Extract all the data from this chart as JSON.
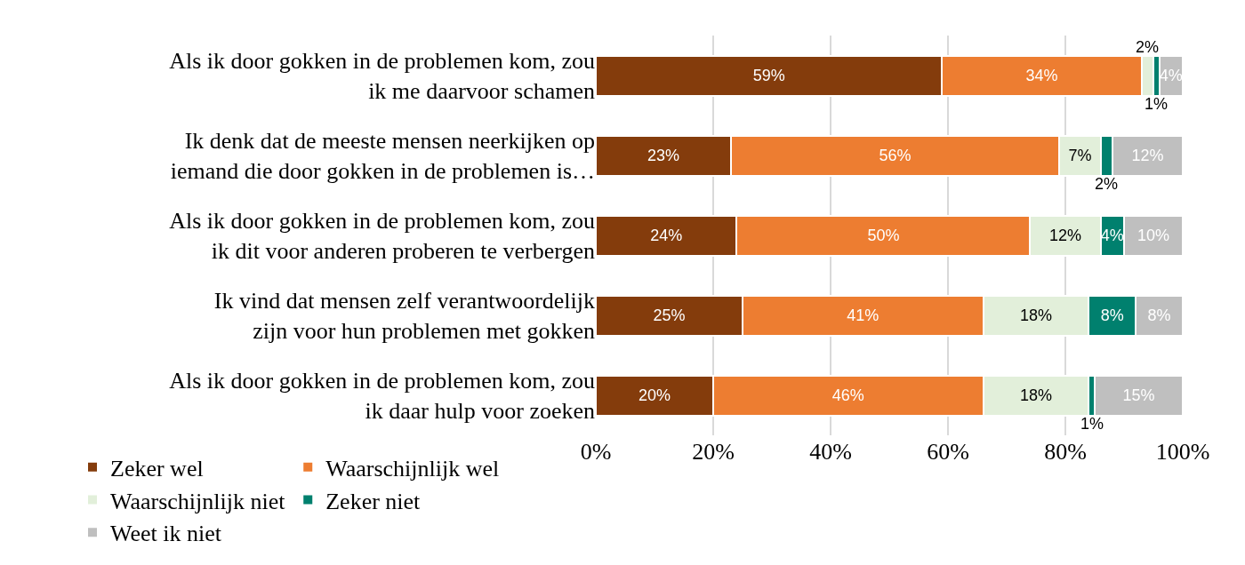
{
  "chart_data": {
    "type": "bar",
    "orientation": "horizontal",
    "stacked": true,
    "categories": [
      "Als ik door gokken in de problemen kom, zou ik me daarvoor schamen",
      "Ik denk dat de meeste mensen neerkijken op iemand die door gokken in de problemen is…",
      "Als ik door gokken in de problemen kom, zou ik dit voor anderen proberen te verbergen",
      "Ik vind dat mensen zelf verantwoordelijk zijn voor hun problemen met gokken",
      "Als ik door gokken in de problemen kom, zou ik daar hulp voor zoeken"
    ],
    "series": [
      {
        "name": "Zeker wel",
        "color": "#843c0c",
        "values": [
          59,
          23,
          24,
          25,
          20
        ],
        "value_labels": [
          "59%",
          "23%",
          "24%",
          "25%",
          "20%"
        ]
      },
      {
        "name": "Waarschijnlijk wel",
        "color": "#ed7d31",
        "values": [
          34,
          56,
          50,
          41,
          46
        ],
        "value_labels": [
          "34%",
          "56%",
          "50%",
          "41%",
          "46%"
        ]
      },
      {
        "name": "Waarschijnlijk niet",
        "color": "#e2efda",
        "values": [
          2,
          7,
          12,
          18,
          18
        ],
        "value_labels": [
          "2%",
          "7%",
          "12%",
          "18%",
          "18%"
        ]
      },
      {
        "name": "Zeker niet",
        "color": "#00806e",
        "values": [
          1,
          2,
          4,
          8,
          1
        ],
        "value_labels": [
          "1%",
          "2%",
          "4%",
          "8%",
          "1%"
        ]
      },
      {
        "name": "Weet ik niet",
        "color": "#bfbfbf",
        "values": [
          4,
          12,
          10,
          8,
          15
        ],
        "value_labels": [
          "4%",
          "12%",
          "10%",
          "8%",
          "15%"
        ]
      }
    ],
    "xlim": [
      0,
      100
    ],
    "xticks": [
      {
        "value": 0,
        "label": "0%"
      },
      {
        "value": 20,
        "label": "20%"
      },
      {
        "value": 40,
        "label": "40%"
      },
      {
        "value": 60,
        "label": "60%"
      },
      {
        "value": 80,
        "label": "80%"
      },
      {
        "value": 100,
        "label": "100%"
      }
    ],
    "grid": "x",
    "legend": "bottom"
  }
}
